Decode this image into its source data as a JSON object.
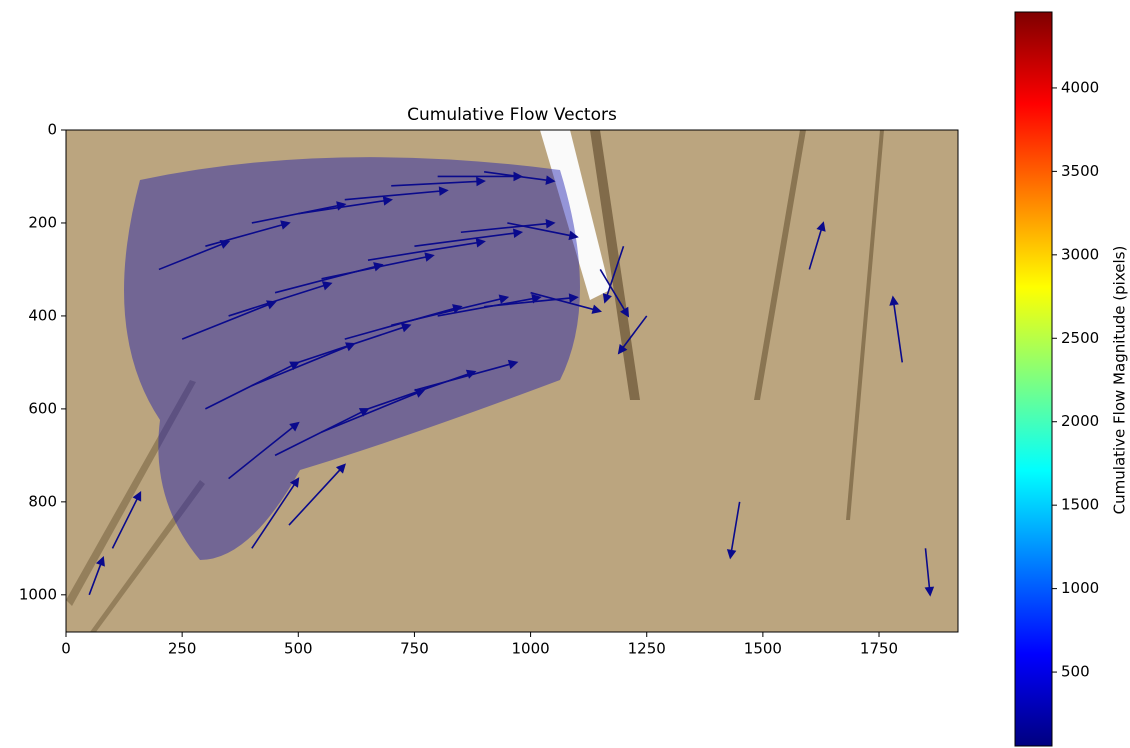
{
  "chart_data": {
    "type": "quiver",
    "title": "Cumulative Flow Vectors",
    "xlim": [
      0,
      1920
    ],
    "ylim": [
      1080,
      0
    ],
    "xticks": [
      0,
      250,
      500,
      750,
      1000,
      1250,
      1500,
      1750
    ],
    "yticks": [
      0,
      200,
      400,
      600,
      800,
      1000
    ],
    "color": "#0a0a8c",
    "x": [
      200,
      300,
      400,
      500,
      600,
      700,
      800,
      900,
      250,
      350,
      450,
      550,
      650,
      750,
      850,
      950,
      300,
      400,
      500,
      600,
      700,
      800,
      900,
      1000,
      350,
      450,
      550,
      650,
      750,
      400,
      480,
      1150,
      1200,
      1250,
      1450,
      1600,
      1800,
      1850,
      100,
      50
    ],
    "y": [
      300,
      250,
      200,
      180,
      150,
      120,
      100,
      90,
      450,
      400,
      350,
      320,
      280,
      250,
      220,
      200,
      600,
      550,
      500,
      450,
      420,
      400,
      380,
      350,
      750,
      700,
      650,
      600,
      560,
      900,
      850,
      300,
      250,
      400,
      800,
      300,
      500,
      900,
      900,
      1000
    ],
    "u": [
      150,
      180,
      200,
      200,
      220,
      200,
      180,
      150,
      200,
      220,
      230,
      240,
      250,
      230,
      200,
      150,
      200,
      220,
      240,
      250,
      250,
      220,
      200,
      150,
      150,
      200,
      220,
      230,
      220,
      100,
      120,
      60,
      -40,
      -60,
      -20,
      30,
      -20,
      10,
      60,
      30
    ],
    "v": [
      -60,
      -50,
      -40,
      -30,
      -20,
      -10,
      0,
      20,
      -80,
      -70,
      -60,
      -50,
      -40,
      -30,
      -20,
      30,
      -100,
      -90,
      -80,
      -70,
      -60,
      -40,
      -20,
      40,
      -120,
      -100,
      -90,
      -80,
      -60,
      -150,
      -130,
      100,
      120,
      80,
      120,
      -100,
      -140,
      100,
      -120,
      -80
    ],
    "colorbar": {
      "label": "Cumulative Flow Magnitude (pixels)",
      "lim": [
        57,
        4455
      ],
      "ticks": [
        500,
        1000,
        1500,
        2000,
        2500,
        3000,
        3500,
        4000
      ],
      "colors": [
        "#00007f",
        "#0000ff",
        "#007fff",
        "#00ffff",
        "#7fff7f",
        "#ffff00",
        "#ff7f00",
        "#ff0000",
        "#7f0000"
      ]
    }
  }
}
